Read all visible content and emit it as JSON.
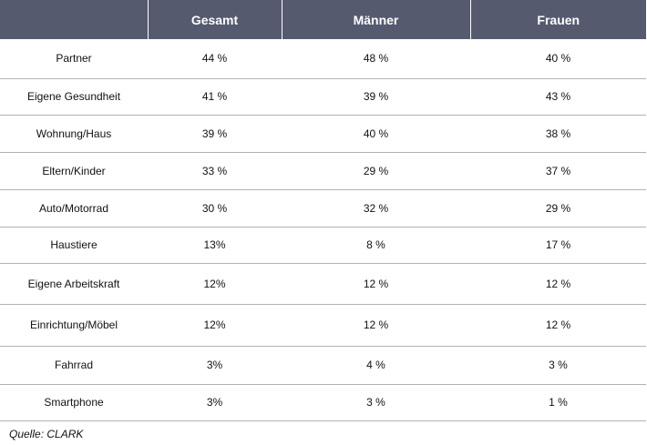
{
  "table": {
    "columns": [
      "",
      "Gesamt",
      "Männer",
      "Frauen"
    ],
    "rows": [
      {
        "category": "Partner",
        "gesamt": "44 %",
        "maenner": "48 %",
        "frauen": "40 %"
      },
      {
        "category": "Eigene Gesundheit",
        "gesamt": "41 %",
        "maenner": "39 %",
        "frauen": "43 %"
      },
      {
        "category": "Wohnung/Haus",
        "gesamt": "39 %",
        "maenner": "40 %",
        "frauen": "38 %"
      },
      {
        "category": "Eltern/Kinder",
        "gesamt": "33 %",
        "maenner": "29 %",
        "frauen": "37 %"
      },
      {
        "category": "Auto/Motorrad",
        "gesamt": "30 %",
        "maenner": "32 %",
        "frauen": "29 %"
      },
      {
        "category": "Haustiere",
        "gesamt": "13%",
        "maenner": "8 %",
        "frauen": "17 %"
      },
      {
        "category": "Eigene Arbeitskraft",
        "gesamt": "12%",
        "maenner": "12 %",
        "frauen": "12 %"
      },
      {
        "category": "Einrichtung/Möbel",
        "gesamt": "12%",
        "maenner": "12 %",
        "frauen": "12 %"
      },
      {
        "category": "Fahrrad",
        "gesamt": "3%",
        "maenner": "4 %",
        "frauen": "3 %"
      },
      {
        "category": "Smartphone",
        "gesamt": "3%",
        "maenner": "3 %",
        "frauen": "1 %"
      }
    ]
  },
  "source": "Quelle: CLARK",
  "colors": {
    "header_bg": "#555a6f",
    "header_text": "#ffffff",
    "row_border": "#b3b3b3"
  }
}
